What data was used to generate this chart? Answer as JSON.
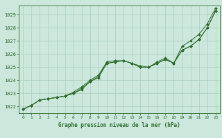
{
  "title": "Graphe pression niveau de la mer (hPa)",
  "bg_color": "#cce8dc",
  "grid_color": "#aacfbf",
  "line_color": "#2d6a2d",
  "marker_color": "#2d6a2d",
  "xlim": [
    -0.5,
    23.5
  ],
  "ylim": [
    1021.5,
    1029.7
  ],
  "yticks": [
    1022,
    1023,
    1024,
    1025,
    1026,
    1027,
    1028,
    1029
  ],
  "xticks": [
    0,
    1,
    2,
    3,
    4,
    5,
    6,
    7,
    8,
    9,
    10,
    11,
    12,
    13,
    14,
    15,
    16,
    17,
    18,
    19,
    20,
    21,
    22,
    23
  ],
  "series": [
    [
      1021.8,
      1022.1,
      1022.5,
      1022.6,
      1022.7,
      1022.8,
      1023.0,
      1023.3,
      1023.9,
      1024.2,
      1025.3,
      1025.4,
      1025.5,
      1025.3,
      1025.0,
      1025.0,
      1025.3,
      1025.6,
      1025.3,
      1026.3,
      1026.6,
      1027.1,
      1028.0,
      1029.3
    ],
    [
      1021.8,
      1022.1,
      1022.5,
      1022.6,
      1022.7,
      1022.8,
      1023.0,
      1023.4,
      1023.9,
      1024.3,
      1025.3,
      1025.4,
      1025.5,
      1025.3,
      1025.0,
      1025.0,
      1025.3,
      1025.6,
      1025.3,
      1026.3,
      1026.6,
      1027.1,
      1028.0,
      1029.3
    ],
    [
      1021.8,
      1022.1,
      1022.5,
      1022.6,
      1022.7,
      1022.8,
      1023.1,
      1023.5,
      1024.0,
      1024.4,
      1025.4,
      1025.5,
      1025.5,
      1025.3,
      1025.1,
      1025.0,
      1025.4,
      1025.7,
      1025.3,
      1026.6,
      1027.0,
      1027.5,
      1028.3,
      1029.5
    ]
  ]
}
